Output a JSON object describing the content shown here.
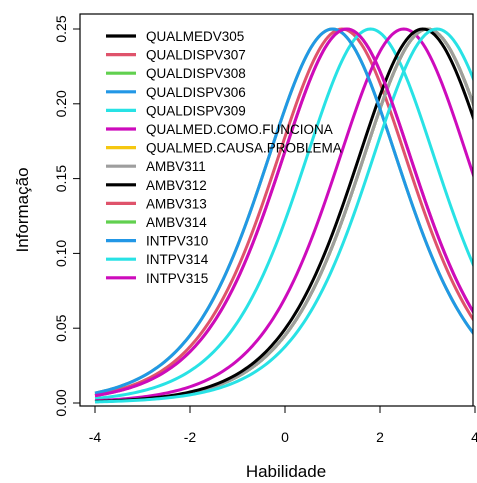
{
  "chart_data": {
    "type": "line",
    "title": "",
    "xlabel": "Habilidade",
    "ylabel": "Informação",
    "xlim": [
      -4,
      4
    ],
    "ylim": [
      0,
      0.25
    ],
    "x_ticks": [
      -4,
      -2,
      0,
      2,
      4
    ],
    "y_ticks": [
      0.0,
      0.05,
      0.1,
      0.15,
      0.2,
      0.25
    ],
    "x_tick_labels": [
      "-4",
      "-2",
      "0",
      "2",
      "4"
    ],
    "y_tick_labels": [
      "0.00",
      "0.05",
      "0.10",
      "0.15",
      "0.20",
      "0.25"
    ],
    "legend_position": "top-left",
    "grid": false,
    "series": [
      {
        "name": "QUALMEDV305",
        "color": "#000000",
        "peak_x": 3.0,
        "peak_y": 0.25,
        "slope": 1.0
      },
      {
        "name": "QUALDISPV307",
        "color": "#DF536B",
        "peak_x": 1.2,
        "peak_y": 0.25,
        "slope": 1.0
      },
      {
        "name": "QUALDISPV308",
        "color": "#61D04F",
        "peak_x": 3.0,
        "peak_y": 0.25,
        "slope": 1.0
      },
      {
        "name": "QUALDISPV306",
        "color": "#2297E6",
        "peak_x": 3.0,
        "peak_y": 0.25,
        "slope": 1.0
      },
      {
        "name": "QUALDISPV309",
        "color": "#28E2E5",
        "peak_x": 1.8,
        "peak_y": 0.25,
        "slope": 1.0
      },
      {
        "name": "QUALMED.COMO.FUNCIONA",
        "color": "#CD0BBC",
        "peak_x": 2.5,
        "peak_y": 0.25,
        "slope": 1.0
      },
      {
        "name": "QUALMED.CAUSA.PROBLEMA",
        "color": "#F5C710",
        "peak_x": 3.0,
        "peak_y": 0.25,
        "slope": 1.0
      },
      {
        "name": "AMBV311",
        "color": "#9E9E9E",
        "peak_x": 3.0,
        "peak_y": 0.25,
        "slope": 1.0
      },
      {
        "name": "AMBV312",
        "color": "#000000",
        "peak_x": 2.9,
        "peak_y": 0.25,
        "slope": 1.0
      },
      {
        "name": "AMBV313",
        "color": "#DF536B",
        "peak_x": 1.3,
        "peak_y": 0.25,
        "slope": 1.0
      },
      {
        "name": "AMBV314",
        "color": "#61D04F",
        "peak_x": 1.0,
        "peak_y": 0.25,
        "slope": 1.0
      },
      {
        "name": "INTPV310",
        "color": "#2297E6",
        "peak_x": 1.0,
        "peak_y": 0.25,
        "slope": 1.0
      },
      {
        "name": "INTPV314",
        "color": "#28E2E5",
        "peak_x": 3.2,
        "peak_y": 0.25,
        "slope": 1.0
      },
      {
        "name": "INTPV315",
        "color": "#CD0BBC",
        "peak_x": 1.3,
        "peak_y": 0.25,
        "slope": 1.0
      }
    ]
  }
}
